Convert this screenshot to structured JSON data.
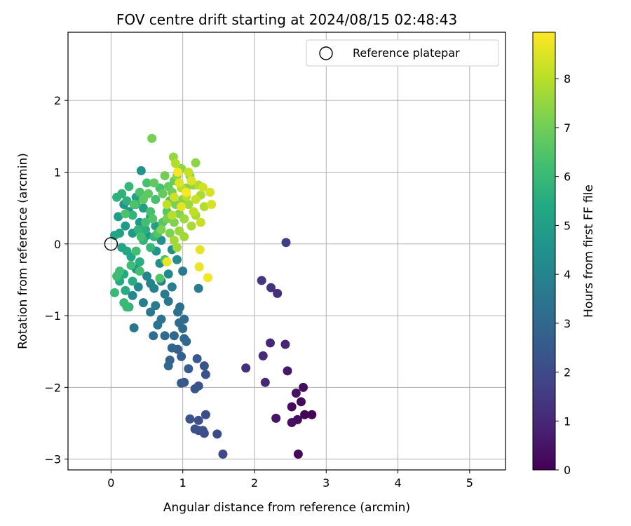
{
  "chart_data": {
    "type": "scatter",
    "title": "FOV centre drift starting at 2024/08/15 02:48:43",
    "xlabel": "Angular distance from reference (arcmin)",
    "ylabel": "Rotation from reference (arcmin)",
    "xlim": [
      -0.6,
      5.5
    ],
    "ylim": [
      -3.15,
      2.95
    ],
    "xticks": [
      0,
      1,
      2,
      3,
      4,
      5
    ],
    "yticks": [
      -3,
      -2,
      -1,
      0,
      1,
      2
    ],
    "grid": true,
    "legend": {
      "position": "top-right",
      "entries": [
        "Reference platepar"
      ]
    },
    "reference_point": {
      "x": 0,
      "y": 0,
      "marker": "open-circle"
    },
    "colorbar": {
      "label": "Hours from first FF file",
      "colormap": "viridis",
      "range": [
        0,
        8.95
      ],
      "ticks": [
        0,
        1,
        2,
        3,
        4,
        5,
        6,
        7,
        8
      ]
    },
    "points": [
      {
        "x": 2.61,
        "y": -2.93,
        "c": 0.2
      },
      {
        "x": 2.8,
        "y": -2.38,
        "c": 0.1
      },
      {
        "x": 2.7,
        "y": -2.38,
        "c": 0.1
      },
      {
        "x": 2.6,
        "y": -2.45,
        "c": 0.3
      },
      {
        "x": 2.52,
        "y": -2.49,
        "c": 0.4
      },
      {
        "x": 2.65,
        "y": -2.2,
        "c": 0.2
      },
      {
        "x": 2.52,
        "y": -2.27,
        "c": 0.3
      },
      {
        "x": 2.58,
        "y": -2.08,
        "c": 0.4
      },
      {
        "x": 2.68,
        "y": -2.0,
        "c": 0.3
      },
      {
        "x": 2.3,
        "y": -2.43,
        "c": 0.5
      },
      {
        "x": 2.46,
        "y": -1.77,
        "c": 0.6
      },
      {
        "x": 2.43,
        "y": -1.4,
        "c": 0.9
      },
      {
        "x": 2.22,
        "y": -1.38,
        "c": 1.0
      },
      {
        "x": 2.15,
        "y": -1.93,
        "c": 1.0
      },
      {
        "x": 2.12,
        "y": -1.56,
        "c": 1.1
      },
      {
        "x": 1.88,
        "y": -1.73,
        "c": 1.2
      },
      {
        "x": 2.32,
        "y": -0.69,
        "c": 1.2
      },
      {
        "x": 2.23,
        "y": -0.61,
        "c": 1.3
      },
      {
        "x": 2.1,
        "y": -0.51,
        "c": 1.4
      },
      {
        "x": 2.44,
        "y": 0.02,
        "c": 1.6
      },
      {
        "x": 1.56,
        "y": -2.93,
        "c": 1.9
      },
      {
        "x": 1.48,
        "y": -2.65,
        "c": 2.0
      },
      {
        "x": 1.3,
        "y": -2.64,
        "c": 2.1
      },
      {
        "x": 1.22,
        "y": -2.6,
        "c": 2.1
      },
      {
        "x": 1.17,
        "y": -2.58,
        "c": 2.2
      },
      {
        "x": 1.32,
        "y": -2.38,
        "c": 2.1
      },
      {
        "x": 1.22,
        "y": -2.46,
        "c": 2.2
      },
      {
        "x": 1.1,
        "y": -2.44,
        "c": 2.3
      },
      {
        "x": 1.28,
        "y": -2.6,
        "c": 2.2
      },
      {
        "x": 1.22,
        "y": -1.98,
        "c": 2.3
      },
      {
        "x": 1.17,
        "y": -2.02,
        "c": 2.4
      },
      {
        "x": 1.02,
        "y": -1.93,
        "c": 2.4
      },
      {
        "x": 0.98,
        "y": -1.94,
        "c": 2.5
      },
      {
        "x": 1.32,
        "y": -1.82,
        "c": 2.3
      },
      {
        "x": 1.3,
        "y": -1.7,
        "c": 2.4
      },
      {
        "x": 1.2,
        "y": -1.6,
        "c": 2.5
      },
      {
        "x": 1.08,
        "y": -1.74,
        "c": 2.6
      },
      {
        "x": 0.98,
        "y": -1.57,
        "c": 2.7
      },
      {
        "x": 0.93,
        "y": -1.47,
        "c": 2.7
      },
      {
        "x": 0.82,
        "y": -1.62,
        "c": 2.8
      },
      {
        "x": 0.85,
        "y": -1.45,
        "c": 2.9
      },
      {
        "x": 0.8,
        "y": -1.7,
        "c": 3.0
      },
      {
        "x": 1.05,
        "y": -1.36,
        "c": 3.0
      },
      {
        "x": 1.02,
        "y": -1.32,
        "c": 3.0
      },
      {
        "x": 0.88,
        "y": -1.28,
        "c": 3.0
      },
      {
        "x": 0.75,
        "y": -1.28,
        "c": 3.1
      },
      {
        "x": 0.59,
        "y": -1.28,
        "c": 3.2
      },
      {
        "x": 1.0,
        "y": -1.18,
        "c": 3.1
      },
      {
        "x": 0.95,
        "y": -1.1,
        "c": 3.2
      },
      {
        "x": 1.02,
        "y": -1.05,
        "c": 3.2
      },
      {
        "x": 0.93,
        "y": -0.95,
        "c": 3.3
      },
      {
        "x": 0.96,
        "y": -0.88,
        "c": 3.3
      },
      {
        "x": 0.65,
        "y": -1.13,
        "c": 3.4
      },
      {
        "x": 0.7,
        "y": -1.05,
        "c": 3.4
      },
      {
        "x": 0.32,
        "y": -1.17,
        "c": 3.5
      },
      {
        "x": 0.8,
        "y": -0.8,
        "c": 3.5
      },
      {
        "x": 1.0,
        "y": -0.38,
        "c": 3.6
      },
      {
        "x": 0.55,
        "y": -0.95,
        "c": 3.6
      },
      {
        "x": 0.62,
        "y": -0.86,
        "c": 3.7
      },
      {
        "x": 0.75,
        "y": -0.7,
        "c": 3.7
      },
      {
        "x": 0.45,
        "y": -0.82,
        "c": 3.8
      },
      {
        "x": 0.85,
        "y": -0.6,
        "c": 3.8
      },
      {
        "x": 0.7,
        "y": -0.52,
        "c": 3.9
      },
      {
        "x": 0.6,
        "y": -0.62,
        "c": 3.9
      },
      {
        "x": 1.22,
        "y": -0.62,
        "c": 3.7
      },
      {
        "x": 0.55,
        "y": -0.55,
        "c": 4.0
      },
      {
        "x": 0.5,
        "y": -0.45,
        "c": 4.0
      },
      {
        "x": 0.38,
        "y": -0.6,
        "c": 4.1
      },
      {
        "x": 0.3,
        "y": -0.72,
        "c": 4.2
      },
      {
        "x": 0.8,
        "y": -0.42,
        "c": 4.2
      },
      {
        "x": 0.68,
        "y": -0.27,
        "c": 4.3
      },
      {
        "x": 0.92,
        "y": -0.22,
        "c": 4.3
      },
      {
        "x": 0.85,
        "y": -0.08,
        "c": 4.4
      },
      {
        "x": 0.7,
        "y": 0.05,
        "c": 4.4
      },
      {
        "x": 0.63,
        "y": -0.1,
        "c": 4.5
      },
      {
        "x": 0.35,
        "y": -0.35,
        "c": 4.5
      },
      {
        "x": 0.42,
        "y": 1.02,
        "c": 4.5
      },
      {
        "x": 0.18,
        "y": 0.55,
        "c": 4.6
      },
      {
        "x": 0.25,
        "y": 0.45,
        "c": 4.6
      },
      {
        "x": 0.4,
        "y": 0.3,
        "c": 4.7
      },
      {
        "x": 0.5,
        "y": 0.12,
        "c": 4.7
      },
      {
        "x": 0.3,
        "y": 0.15,
        "c": 4.8
      },
      {
        "x": 0.2,
        "y": 0.25,
        "c": 4.8
      },
      {
        "x": 0.1,
        "y": 0.38,
        "c": 4.9
      },
      {
        "x": 0.55,
        "y": 0.38,
        "c": 4.9
      },
      {
        "x": 0.62,
        "y": 0.25,
        "c": 5.0
      },
      {
        "x": 0.45,
        "y": 0.5,
        "c": 5.0
      },
      {
        "x": 0.35,
        "y": 0.65,
        "c": 5.1
      },
      {
        "x": 0.12,
        "y": 0.15,
        "c": 5.1
      },
      {
        "x": 0.05,
        "y": 0.12,
        "c": 5.2
      },
      {
        "x": 0.15,
        "y": -0.05,
        "c": 5.2
      },
      {
        "x": 0.22,
        "y": -0.1,
        "c": 5.3
      },
      {
        "x": 0.28,
        "y": -0.18,
        "c": 5.3
      },
      {
        "x": 0.18,
        "y": -0.42,
        "c": 5.4
      },
      {
        "x": 0.12,
        "y": -0.52,
        "c": 5.4
      },
      {
        "x": 0.3,
        "y": -0.52,
        "c": 5.5
      },
      {
        "x": 0.2,
        "y": -0.65,
        "c": 5.5
      },
      {
        "x": 0.25,
        "y": -0.88,
        "c": 5.6
      },
      {
        "x": 0.4,
        "y": -0.25,
        "c": 5.6
      },
      {
        "x": 0.48,
        "y": 0.2,
        "c": 5.6
      },
      {
        "x": 0.08,
        "y": 0.65,
        "c": 5.7
      },
      {
        "x": 0.15,
        "y": 0.7,
        "c": 5.7
      },
      {
        "x": 0.22,
        "y": 0.6,
        "c": 5.7
      },
      {
        "x": 0.3,
        "y": 0.4,
        "c": 5.8
      },
      {
        "x": 0.38,
        "y": 0.2,
        "c": 5.8
      },
      {
        "x": 0.45,
        "y": 0.05,
        "c": 5.8
      },
      {
        "x": 0.55,
        "y": -0.05,
        "c": 5.9
      },
      {
        "x": 0.6,
        "y": 0.1,
        "c": 5.9
      },
      {
        "x": 0.25,
        "y": 0.8,
        "c": 5.9
      },
      {
        "x": 0.35,
        "y": 0.55,
        "c": 6.0
      },
      {
        "x": 0.05,
        "y": -0.68,
        "c": 6.0
      },
      {
        "x": 0.18,
        "y": -0.82,
        "c": 6.0
      },
      {
        "x": 0.22,
        "y": -0.88,
        "c": 6.0
      },
      {
        "x": 0.08,
        "y": -0.45,
        "c": 6.1
      },
      {
        "x": 0.12,
        "y": -0.38,
        "c": 6.1
      },
      {
        "x": 0.28,
        "y": -0.3,
        "c": 6.1
      },
      {
        "x": 0.4,
        "y": -0.38,
        "c": 6.2
      },
      {
        "x": 0.35,
        "y": -0.1,
        "c": 6.2
      },
      {
        "x": 0.42,
        "y": 0.1,
        "c": 6.2
      },
      {
        "x": 0.48,
        "y": 0.3,
        "c": 6.2
      },
      {
        "x": 0.55,
        "y": 0.45,
        "c": 6.3
      },
      {
        "x": 0.62,
        "y": 0.62,
        "c": 6.3
      },
      {
        "x": 0.68,
        "y": 0.78,
        "c": 6.3
      },
      {
        "x": 0.5,
        "y": 0.85,
        "c": 6.3
      },
      {
        "x": 0.4,
        "y": 0.72,
        "c": 6.4
      },
      {
        "x": 0.32,
        "y": 0.55,
        "c": 6.4
      },
      {
        "x": 0.2,
        "y": 0.42,
        "c": 6.4
      },
      {
        "x": 0.75,
        "y": -0.22,
        "c": 6.4
      },
      {
        "x": 0.68,
        "y": -0.48,
        "c": 6.5
      },
      {
        "x": 0.58,
        "y": 0.35,
        "c": 6.5
      },
      {
        "x": 0.65,
        "y": 0.15,
        "c": 6.5
      },
      {
        "x": 0.72,
        "y": 0.3,
        "c": 6.6
      },
      {
        "x": 0.78,
        "y": 0.45,
        "c": 6.6
      },
      {
        "x": 0.82,
        "y": 0.6,
        "c": 6.6
      },
      {
        "x": 0.45,
        "y": 0.62,
        "c": 6.7
      },
      {
        "x": 0.52,
        "y": 0.7,
        "c": 6.7
      },
      {
        "x": 0.6,
        "y": 0.85,
        "c": 6.7
      },
      {
        "x": 0.72,
        "y": 0.7,
        "c": 6.8
      },
      {
        "x": 0.8,
        "y": 0.8,
        "c": 6.8
      },
      {
        "x": 0.88,
        "y": 0.88,
        "c": 6.9
      },
      {
        "x": 0.57,
        "y": 1.47,
        "c": 7.1
      },
      {
        "x": 0.75,
        "y": 0.95,
        "c": 7.0
      },
      {
        "x": 0.85,
        "y": 0.72,
        "c": 7.0
      },
      {
        "x": 0.9,
        "y": 0.55,
        "c": 7.1
      },
      {
        "x": 0.78,
        "y": 0.35,
        "c": 7.1
      },
      {
        "x": 0.7,
        "y": 0.2,
        "c": 7.2
      },
      {
        "x": 0.82,
        "y": 0.15,
        "c": 7.2
      },
      {
        "x": 0.88,
        "y": 0.3,
        "c": 7.2
      },
      {
        "x": 0.95,
        "y": 0.42,
        "c": 7.3
      },
      {
        "x": 1.0,
        "y": 0.62,
        "c": 7.3
      },
      {
        "x": 1.05,
        "y": 0.78,
        "c": 7.3
      },
      {
        "x": 0.92,
        "y": 0.95,
        "c": 7.4
      },
      {
        "x": 0.98,
        "y": 1.05,
        "c": 7.4
      },
      {
        "x": 1.1,
        "y": 0.95,
        "c": 7.4
      },
      {
        "x": 1.18,
        "y": 1.13,
        "c": 7.4
      },
      {
        "x": 0.87,
        "y": 1.21,
        "c": 7.5
      },
      {
        "x": 1.15,
        "y": 0.82,
        "c": 7.5
      },
      {
        "x": 1.08,
        "y": 0.55,
        "c": 7.6
      },
      {
        "x": 1.02,
        "y": 0.35,
        "c": 7.6
      },
      {
        "x": 0.95,
        "y": 0.18,
        "c": 7.6
      },
      {
        "x": 0.88,
        "y": 0.05,
        "c": 7.7
      },
      {
        "x": 0.92,
        "y": -0.05,
        "c": 7.7
      },
      {
        "x": 1.02,
        "y": 0.1,
        "c": 7.7
      },
      {
        "x": 1.12,
        "y": 0.25,
        "c": 7.8
      },
      {
        "x": 1.18,
        "y": 0.4,
        "c": 7.8
      },
      {
        "x": 1.25,
        "y": 0.68,
        "c": 7.8
      },
      {
        "x": 1.3,
        "y": 0.52,
        "c": 7.9
      },
      {
        "x": 1.22,
        "y": 0.82,
        "c": 7.9
      },
      {
        "x": 0.9,
        "y": 1.12,
        "c": 7.9
      },
      {
        "x": 0.98,
        "y": 0.78,
        "c": 8.0
      },
      {
        "x": 1.05,
        "y": 0.66,
        "c": 8.0
      },
      {
        "x": 0.85,
        "y": 0.4,
        "c": 8.0
      },
      {
        "x": 0.78,
        "y": 0.55,
        "c": 8.1
      },
      {
        "x": 1.15,
        "y": 0.45,
        "c": 8.1
      },
      {
        "x": 1.25,
        "y": 0.3,
        "c": 8.2
      },
      {
        "x": 1.08,
        "y": 1.0,
        "c": 8.2
      },
      {
        "x": 1.28,
        "y": 0.79,
        "c": 8.3
      },
      {
        "x": 1.38,
        "y": 0.72,
        "c": 8.4
      },
      {
        "x": 1.4,
        "y": 0.55,
        "c": 8.4
      },
      {
        "x": 1.12,
        "y": 0.88,
        "c": 8.5
      },
      {
        "x": 0.78,
        "y": -0.25,
        "c": 8.7
      },
      {
        "x": 1.35,
        "y": -0.47,
        "c": 8.8
      },
      {
        "x": 1.23,
        "y": -0.32,
        "c": 8.7
      },
      {
        "x": 1.24,
        "y": -0.08,
        "c": 8.6
      },
      {
        "x": 0.98,
        "y": 0.52,
        "c": 8.6
      },
      {
        "x": 0.93,
        "y": 1.0,
        "c": 8.8
      },
      {
        "x": 1.05,
        "y": 0.72,
        "c": 8.9
      },
      {
        "x": 0.95,
        "y": 0.85,
        "c": 8.5
      },
      {
        "x": 0.88,
        "y": 0.65,
        "c": 8.3
      },
      {
        "x": 1.18,
        "y": 0.62,
        "c": 8.2
      }
    ]
  }
}
